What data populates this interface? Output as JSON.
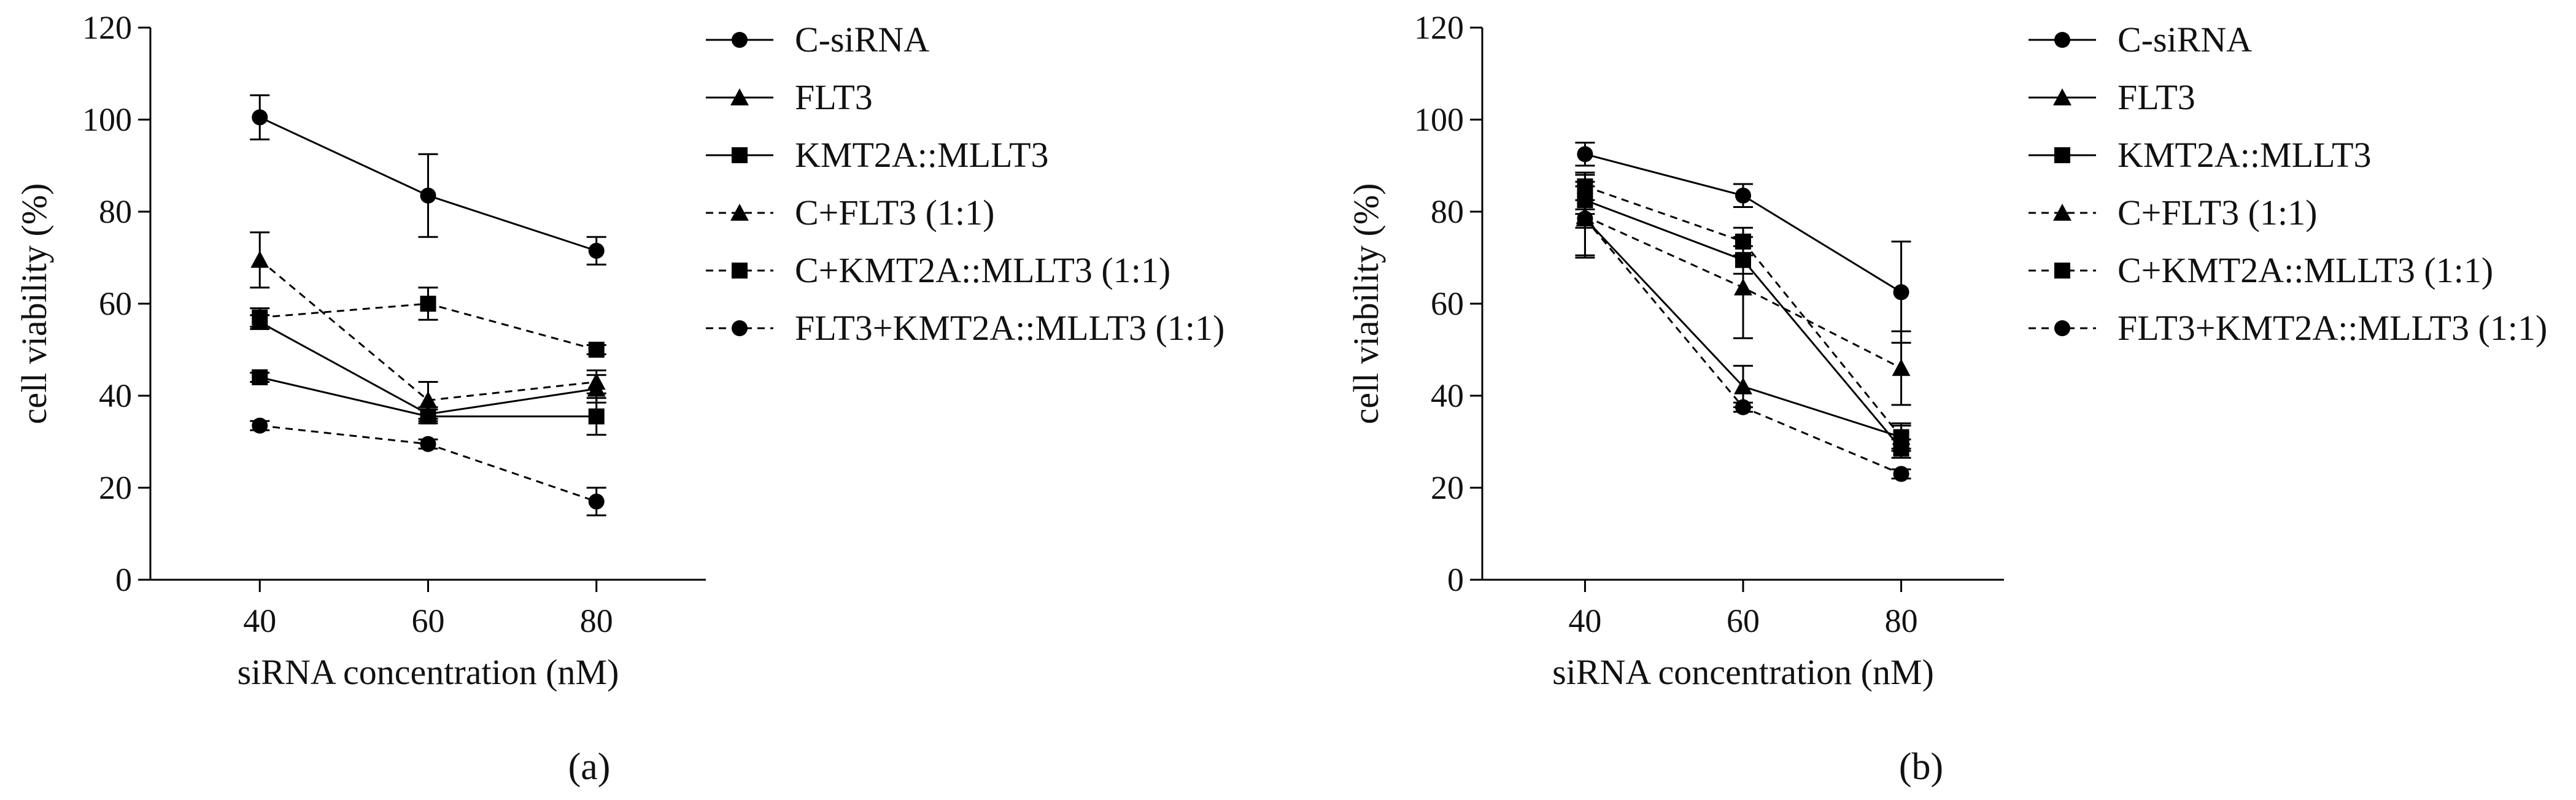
{
  "figure": {
    "panel_labels": [
      "a",
      "b"
    ]
  },
  "chart_data": [
    {
      "panel": "a",
      "type": "line",
      "xlabel": "siRNA concentration (nM)",
      "ylabel": "cell viability (%)",
      "x": [
        40,
        60,
        80
      ],
      "xlim": [
        27,
        93
      ],
      "ylim": [
        0,
        120
      ],
      "yticks": [
        0,
        20,
        40,
        60,
        80,
        100,
        120
      ],
      "xticks": [
        40,
        60,
        80
      ],
      "legend_position": "right",
      "series": [
        {
          "name": "C-siRNA",
          "marker": "circle",
          "dashed": false,
          "values": [
            100.5,
            83.5,
            71.5
          ],
          "errors": [
            4.8,
            9.0,
            3.0
          ]
        },
        {
          "name": "FLT3",
          "marker": "triangle",
          "dashed": false,
          "values": [
            56.0,
            36.0,
            41.5
          ],
          "errors": [
            1.5,
            1.5,
            3.0
          ]
        },
        {
          "name": "KMT2A::MLLT3",
          "marker": "square",
          "dashed": false,
          "values": [
            44.0,
            35.5,
            35.5
          ],
          "errors": [
            1.0,
            1.5,
            4.0
          ]
        },
        {
          "name": "C+FLT3 (1:1)",
          "marker": "triangle",
          "dashed": true,
          "values": [
            69.5,
            39.0,
            43.0
          ],
          "errors": [
            6.0,
            4.0,
            2.5
          ]
        },
        {
          "name": "C+KMT2A::MLLT3 (1:1)",
          "marker": "square",
          "dashed": true,
          "values": [
            57.0,
            60.0,
            50.0
          ],
          "errors": [
            2.0,
            3.5,
            1.0
          ]
        },
        {
          "name": "FLT3+KMT2A::MLLT3 (1:1)",
          "marker": "circle",
          "dashed": true,
          "values": [
            33.5,
            29.5,
            17.0
          ],
          "errors": [
            1.0,
            1.0,
            3.0
          ]
        }
      ]
    },
    {
      "panel": "b",
      "type": "line",
      "xlabel": "siRNA concentration (nM)",
      "ylabel": "cell viability (%)",
      "x": [
        40,
        60,
        80
      ],
      "xlim": [
        27,
        93
      ],
      "ylim": [
        0,
        120
      ],
      "yticks": [
        0,
        20,
        40,
        60,
        80,
        100,
        120
      ],
      "xticks": [
        40,
        60,
        80
      ],
      "legend_position": "right",
      "series": [
        {
          "name": "C-siRNA",
          "marker": "circle",
          "dashed": false,
          "values": [
            92.5,
            83.5,
            62.5
          ],
          "errors": [
            2.5,
            2.5,
            11.0
          ]
        },
        {
          "name": "FLT3",
          "marker": "triangle",
          "dashed": false,
          "values": [
            78.5,
            42.0,
            31.0
          ],
          "errors": [
            8.0,
            4.5,
            3.0
          ]
        },
        {
          "name": "KMT2A::MLLT3",
          "marker": "square",
          "dashed": false,
          "values": [
            82.5,
            69.5,
            28.5
          ],
          "errors": [
            3.0,
            3.0,
            2.0
          ]
        },
        {
          "name": "C+FLT3 (1:1)",
          "marker": "triangle",
          "dashed": true,
          "values": [
            79.0,
            63.5,
            46.0
          ],
          "errors": [
            9.0,
            11.0,
            8.0
          ]
        },
        {
          "name": "C+KMT2A::MLLT3 (1:1)",
          "marker": "square",
          "dashed": true,
          "values": [
            85.5,
            73.5,
            31.0
          ],
          "errors": [
            3.0,
            3.0,
            2.5
          ]
        },
        {
          "name": "FLT3+KMT2A::MLLT3 (1:1)",
          "marker": "circle",
          "dashed": true,
          "values": [
            78.5,
            37.5,
            23.0
          ],
          "errors": [
            2.0,
            1.0,
            1.0
          ]
        }
      ]
    }
  ]
}
